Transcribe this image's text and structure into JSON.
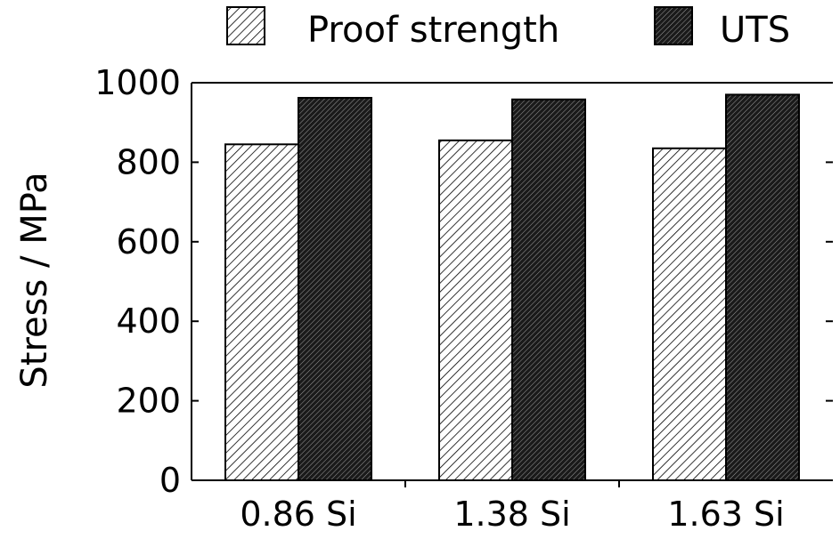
{
  "chart_data": {
    "type": "bar",
    "title": "",
    "xlabel": "",
    "ylabel": "Stress / MPa",
    "ylim": [
      0,
      1000
    ],
    "yticks": [
      0,
      200,
      400,
      600,
      800,
      1000
    ],
    "categories": [
      "0.86 Si",
      "1.38 Si",
      "1.63 Si"
    ],
    "series": [
      {
        "name": "Proof strength",
        "values": [
          845,
          855,
          835
        ],
        "fill": "light-hatch",
        "color": "#ffffff"
      },
      {
        "name": "UTS",
        "values": [
          962,
          958,
          970
        ],
        "fill": "dark-hatch",
        "color": "#333333"
      }
    ],
    "legend_position": "top",
    "grid": false
  }
}
